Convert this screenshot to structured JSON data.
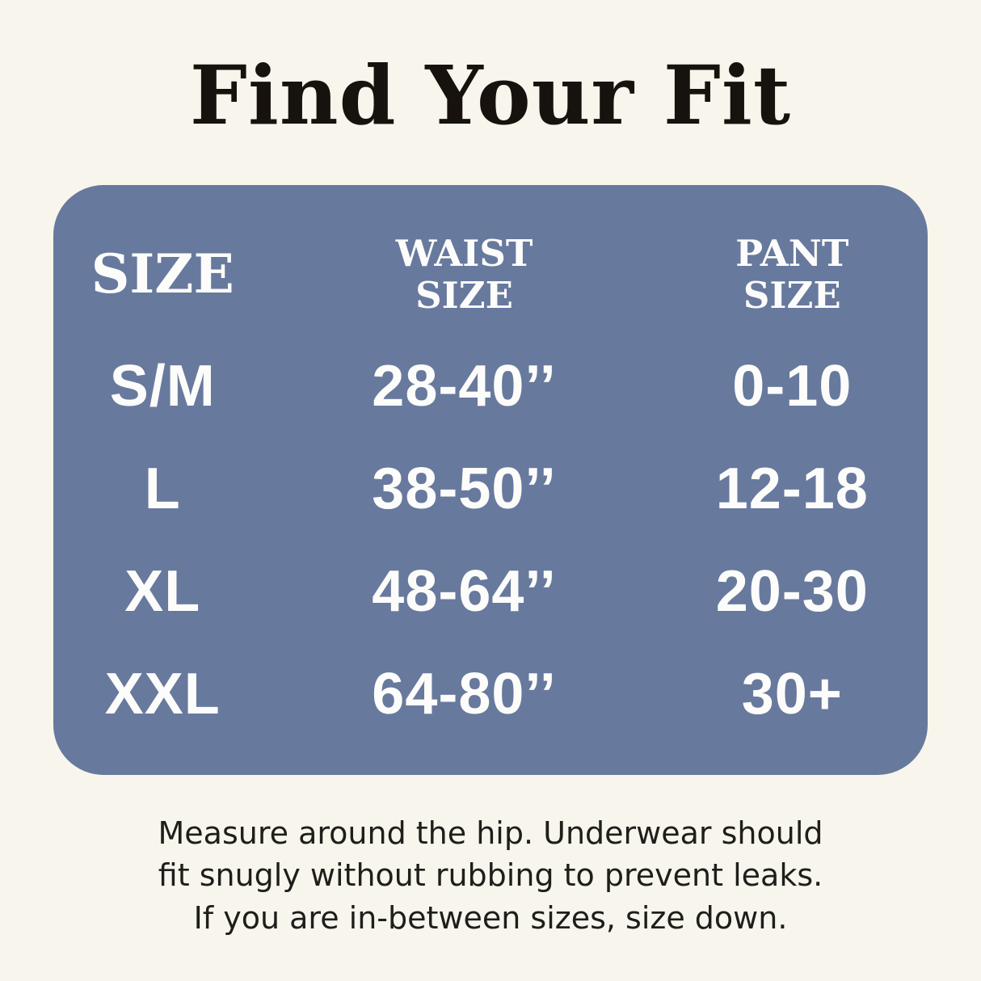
{
  "page": {
    "title": "Find Your Fit",
    "footer_lines": [
      "Measure around the hip. Underwear should",
      "fit snugly without rubbing to prevent leaks.",
      "If you are in-between sizes, size down."
    ]
  },
  "colors": {
    "background": "#F8F6EC",
    "card_background": "#68799E",
    "title_text": "#17120E",
    "table_text": "#FFFFFF",
    "note_text": "#1E1E1B"
  },
  "chart_data": {
    "type": "table",
    "title": "Find Your Fit",
    "columns": [
      "SIZE",
      "WAIST SIZE",
      "PANT SIZE"
    ],
    "rows": [
      [
        "S/M",
        "28-40’’",
        "0-10"
      ],
      [
        "L",
        "38-50’’",
        "12-18"
      ],
      [
        "XL",
        "48-64’’",
        "20-30"
      ],
      [
        "XXL",
        "64-80’’",
        "30+"
      ]
    ],
    "note": "Measure around the hip. Underwear should fit snugly without rubbing to prevent leaks. If you are in-between sizes, size down."
  }
}
